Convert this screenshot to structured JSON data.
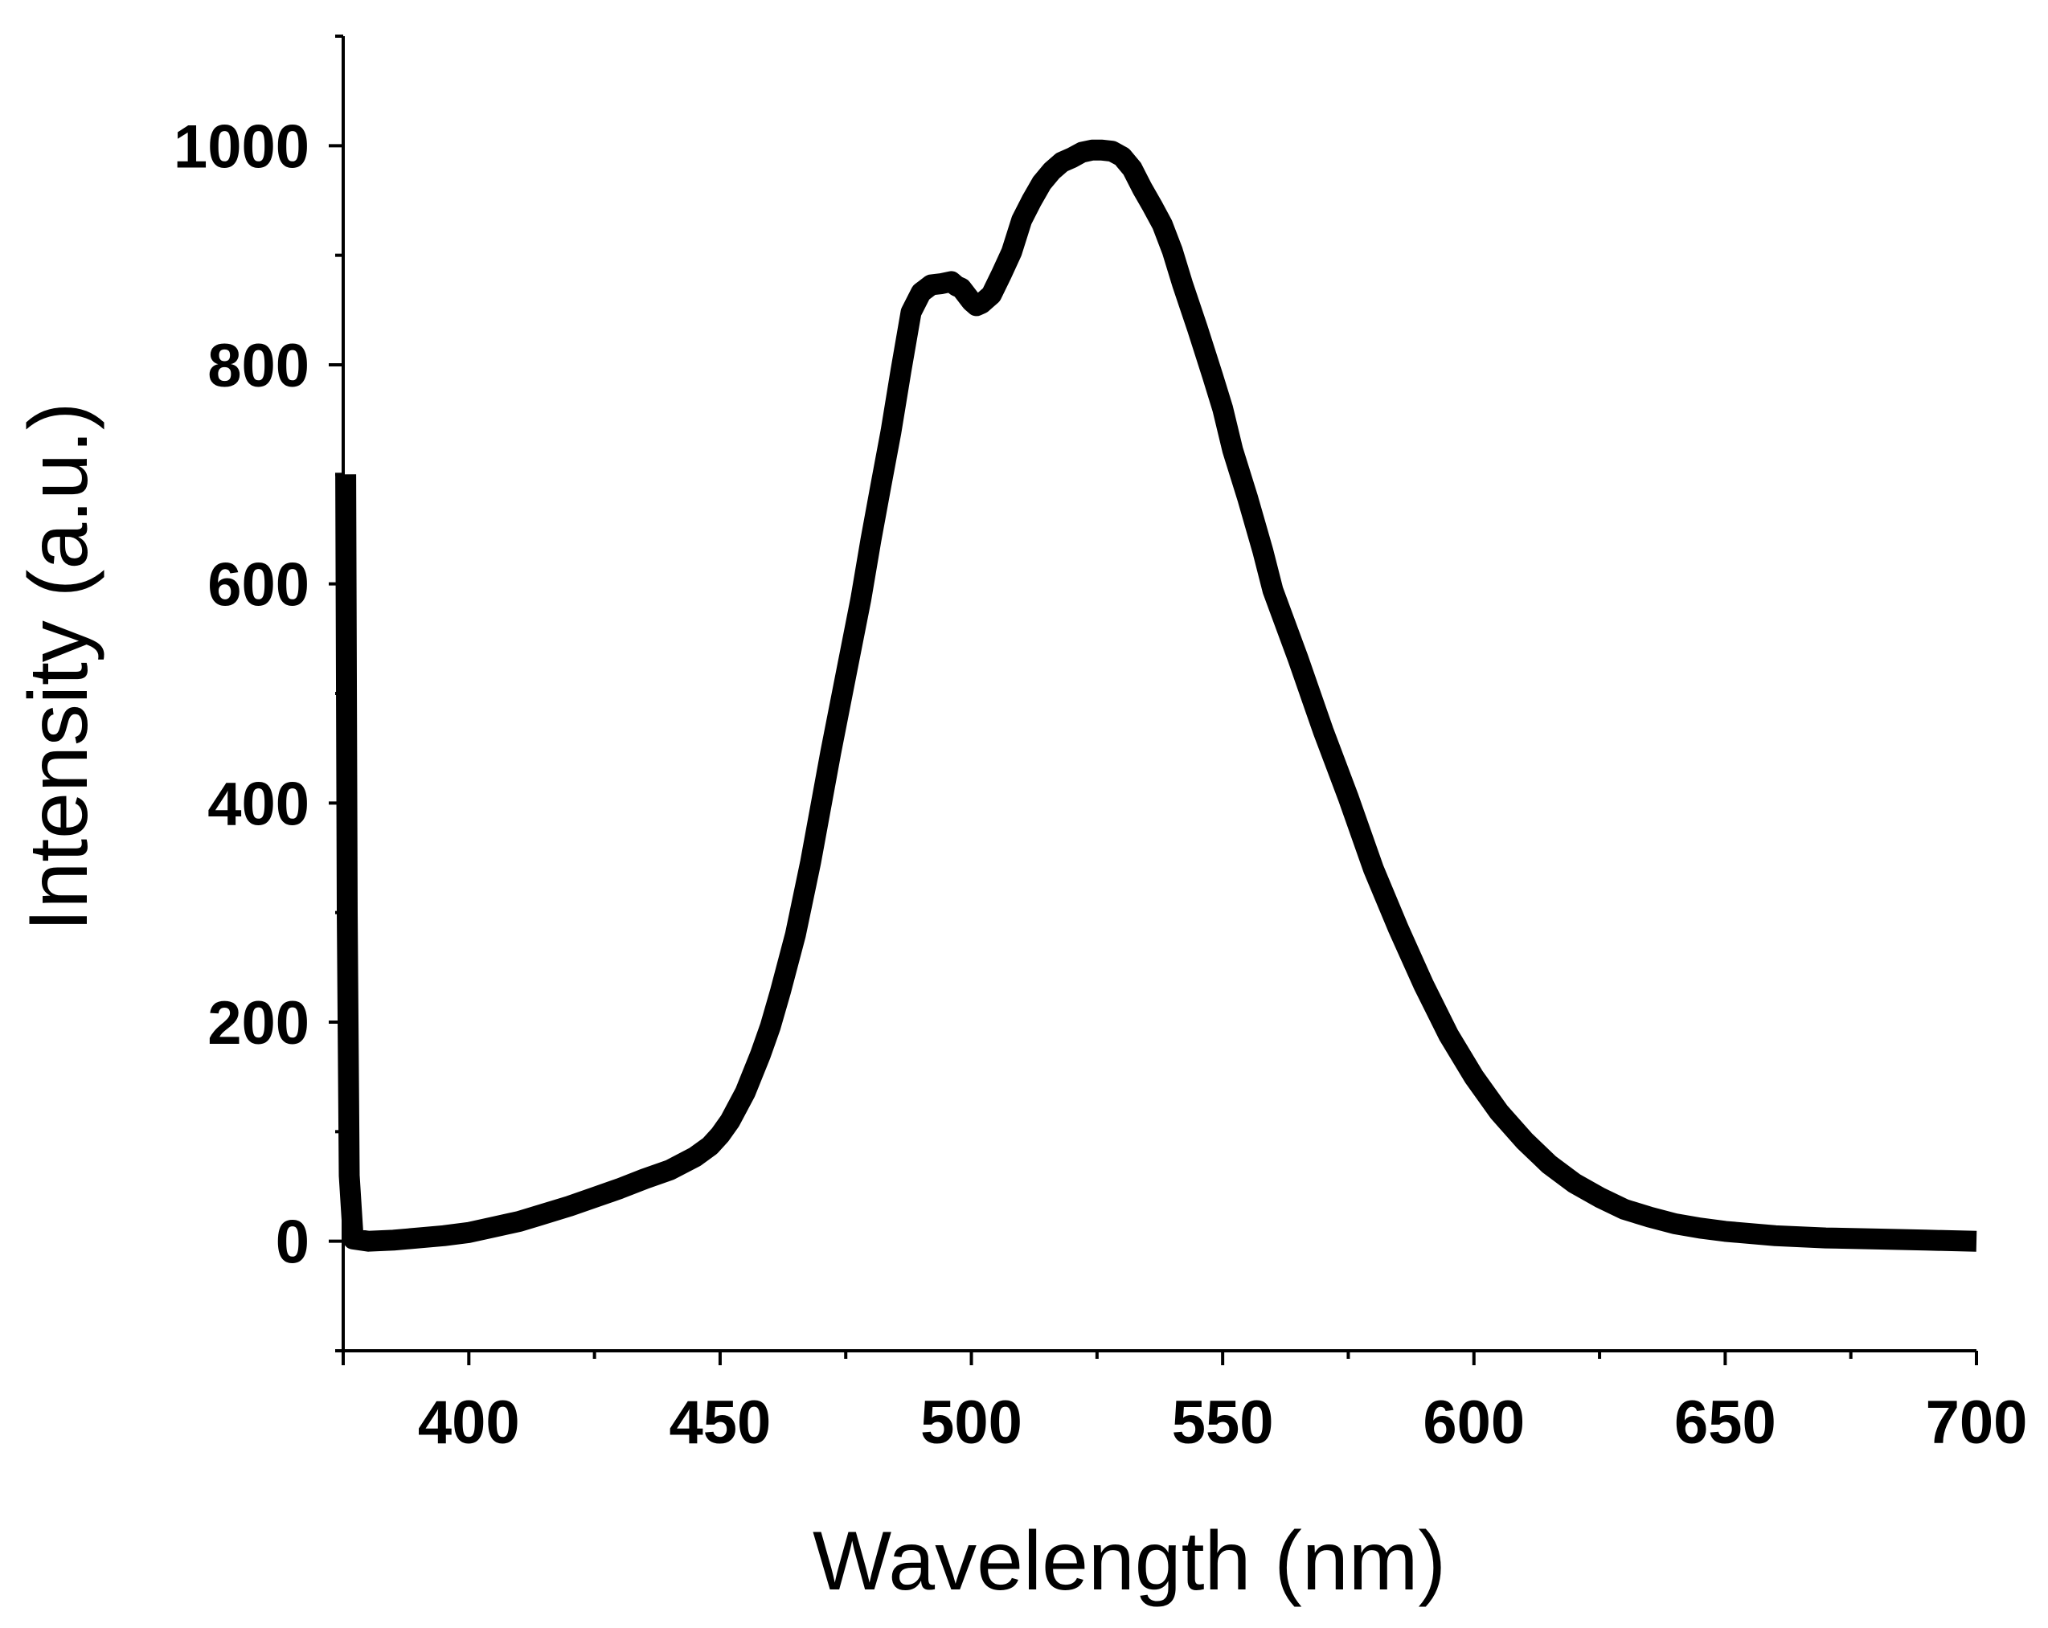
{
  "chart_data": {
    "type": "line",
    "title": "",
    "xlabel": "Wavelength (nm)",
    "ylabel": "Intensity (a.u.)",
    "xlim": [
      375,
      700
    ],
    "ylim": [
      -100,
      1100
    ],
    "x_ticks": [
      400,
      450,
      500,
      550,
      600,
      650,
      700
    ],
    "x_tick_labels": [
      "400",
      "450",
      "500",
      "550",
      "600",
      "650",
      "700"
    ],
    "y_ticks": [
      0,
      200,
      400,
      600,
      800,
      1000
    ],
    "y_tick_labels": [
      "0",
      "200",
      "400",
      "600",
      "800",
      "1000"
    ],
    "grid": false,
    "legend": "none",
    "line_color": "#000000",
    "series": [
      {
        "name": "Intensity",
        "x": [
          375.5,
          375.8,
          376.2,
          377,
          380,
          385,
          390,
          395,
          400,
          405,
          410,
          415,
          420,
          425,
          430,
          435,
          440,
          445,
          448,
          450,
          452,
          455,
          458,
          460,
          462,
          465,
          468,
          470,
          472,
          475,
          478,
          480,
          482,
          484,
          486,
          488,
          490,
          492,
          494,
          496,
          497,
          498,
          500,
          501,
          502,
          504,
          506,
          508,
          510,
          512,
          514,
          516,
          518,
          520,
          522,
          524,
          526,
          528,
          530,
          532,
          534,
          536,
          538,
          540,
          542,
          545,
          548,
          550,
          552,
          555,
          558,
          560,
          565,
          570,
          575,
          580,
          585,
          590,
          595,
          600,
          605,
          610,
          615,
          620,
          625,
          630,
          635,
          640,
          645,
          650,
          660,
          670,
          680,
          690,
          700
        ],
        "values": [
          700,
          300,
          60,
          2,
          0,
          1,
          3,
          5,
          8,
          13,
          18,
          25,
          32,
          40,
          48,
          57,
          65,
          77,
          87,
          97,
          110,
          136,
          170,
          196,
          228,
          280,
          346,
          396,
          446,
          516,
          586,
          640,
          690,
          739,
          795,
          848,
          866,
          873,
          874,
          876,
          872,
          870,
          858,
          854,
          856,
          864,
          883,
          903,
          932,
          950,
          966,
          977,
          985,
          989,
          994,
          996,
          996,
          995,
          990,
          979,
          961,
          945,
          928,
          904,
          874,
          833,
          790,
          760,
          722,
          678,
          630,
          594,
          532,
          466,
          405,
          340,
          285,
          234,
          188,
          150,
          118,
          92,
          70,
          53,
          40,
          29,
          22,
          16,
          12,
          9,
          5,
          3,
          2,
          1,
          0
        ]
      }
    ]
  }
}
